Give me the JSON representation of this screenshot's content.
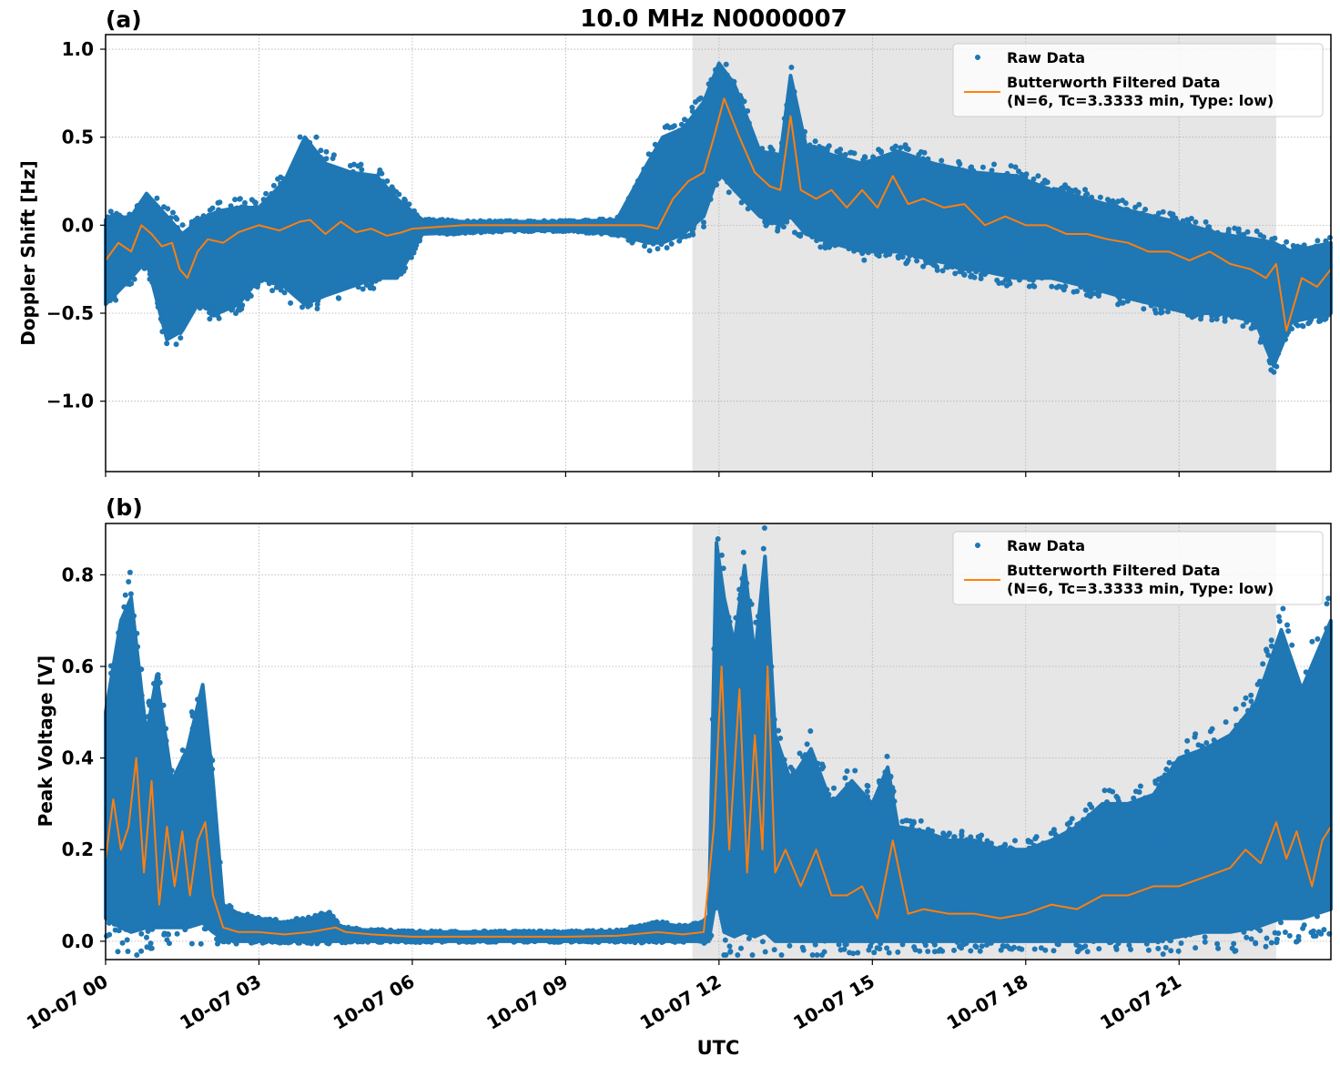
{
  "figure_title": "10.0 MHz N0000007",
  "xlabel": "UTC",
  "colors": {
    "raw": "#1f77b4",
    "filtered": "#ff7f0e",
    "shade": "#e6e6e6",
    "grid": "#b0b0b0"
  },
  "chart_data": [
    {
      "type": "scatter",
      "panel_label": "(a)",
      "title": "10.0 MHz N0000007",
      "xlabel": "",
      "ylabel": "Doppler Shift [Hz]",
      "x_units": "hours since 10-07 00 UTC",
      "xlim": [
        0,
        23.97
      ],
      "ylim": [
        -1.4,
        1.083
      ],
      "grid": true,
      "legend_position": "top-right",
      "shaded_interval_hours": [
        11.48,
        22.9
      ],
      "xticks": [
        0,
        3,
        6,
        9,
        12,
        15,
        18,
        21
      ],
      "xtick_labels": [
        "10-07 00",
        "10-07 03",
        "10-07 06",
        "10-07 09",
        "10-07 12",
        "10-07 15",
        "10-07 18",
        "10-07 21"
      ],
      "yticks": [
        1.0,
        0.5,
        0.0,
        -0.5,
        -1.0
      ],
      "ytick_labels": [
        "1.0",
        "0.5",
        "0.0",
        "−0.5",
        "−1.0"
      ],
      "legend": [
        "Raw Data",
        "Butterworth Filtered Data",
        "(N=6, Tc=3.3333 min, Type: low)"
      ],
      "series": [
        {
          "name": "Raw Data (envelope)",
          "x": [
            0,
            0.5,
            0.8,
            1.2,
            1.5,
            1.8,
            2.2,
            2.6,
            3.0,
            3.5,
            3.9,
            4.3,
            4.8,
            5.3,
            5.7,
            6.2,
            7,
            8,
            9,
            10,
            10.6,
            10.9,
            11.3,
            11.7,
            12.0,
            12.3,
            12.8,
            13.2,
            13.4,
            13.7,
            14.2,
            14.8,
            15.5,
            16.2,
            17,
            17.8,
            18.5,
            19.2,
            19.8,
            20.5,
            21.2,
            21.8,
            22.5,
            22.85,
            23.2,
            23.97
          ],
          "upper": [
            0.03,
            0.05,
            0.18,
            0.05,
            -0.05,
            0.02,
            0.08,
            0.1,
            0.1,
            0.25,
            0.5,
            0.35,
            0.3,
            0.28,
            0.15,
            0.03,
            0.02,
            0.02,
            0.02,
            0.03,
            0.35,
            0.5,
            0.55,
            0.7,
            0.92,
            0.8,
            0.42,
            0.4,
            0.85,
            0.45,
            0.4,
            0.35,
            0.42,
            0.35,
            0.3,
            0.28,
            0.2,
            0.15,
            0.1,
            0.05,
            0.0,
            -0.05,
            -0.08,
            -0.1,
            -0.15,
            -0.1
          ],
          "lower": [
            -0.45,
            -0.3,
            -0.2,
            -0.65,
            -0.6,
            -0.45,
            -0.5,
            -0.45,
            -0.3,
            -0.35,
            -0.45,
            -0.4,
            -0.35,
            -0.3,
            -0.3,
            -0.05,
            -0.04,
            -0.03,
            -0.03,
            -0.05,
            -0.1,
            -0.1,
            -0.05,
            0.05,
            0.3,
            0.2,
            0.05,
            0.0,
            0.05,
            -0.05,
            -0.1,
            -0.15,
            -0.15,
            -0.2,
            -0.25,
            -0.3,
            -0.3,
            -0.35,
            -0.4,
            -0.45,
            -0.5,
            -0.5,
            -0.55,
            -0.8,
            -0.55,
            -0.5
          ]
        },
        {
          "name": "Butterworth Filtered Data",
          "x": [
            0,
            0.25,
            0.5,
            0.7,
            0.9,
            1.1,
            1.3,
            1.45,
            1.6,
            1.8,
            2.0,
            2.3,
            2.6,
            3.0,
            3.4,
            3.8,
            4.0,
            4.3,
            4.6,
            4.9,
            5.2,
            5.5,
            5.8,
            6.0,
            6.5,
            7,
            8,
            9,
            10,
            10.5,
            10.8,
            11.1,
            11.4,
            11.7,
            11.9,
            12.1,
            12.4,
            12.7,
            13.0,
            13.2,
            13.4,
            13.6,
            13.9,
            14.2,
            14.5,
            14.8,
            15.1,
            15.4,
            15.7,
            16.0,
            16.4,
            16.8,
            17.2,
            17.6,
            18.0,
            18.4,
            18.8,
            19.2,
            19.6,
            20.0,
            20.4,
            20.8,
            21.2,
            21.6,
            22.0,
            22.4,
            22.7,
            22.9,
            23.1,
            23.4,
            23.7,
            23.97
          ],
          "y": [
            -0.2,
            -0.1,
            -0.15,
            0.0,
            -0.05,
            -0.12,
            -0.1,
            -0.25,
            -0.3,
            -0.15,
            -0.08,
            -0.1,
            -0.04,
            0.0,
            -0.03,
            0.02,
            0.03,
            -0.05,
            0.02,
            -0.04,
            -0.02,
            -0.06,
            -0.04,
            -0.02,
            -0.01,
            0.0,
            0.0,
            0.0,
            0.0,
            0.0,
            -0.02,
            0.15,
            0.25,
            0.3,
            0.5,
            0.72,
            0.5,
            0.3,
            0.22,
            0.2,
            0.62,
            0.2,
            0.15,
            0.2,
            0.1,
            0.2,
            0.1,
            0.28,
            0.12,
            0.15,
            0.1,
            0.12,
            0.0,
            0.05,
            0.0,
            0.0,
            -0.05,
            -0.05,
            -0.08,
            -0.1,
            -0.15,
            -0.15,
            -0.2,
            -0.15,
            -0.22,
            -0.25,
            -0.3,
            -0.22,
            -0.6,
            -0.3,
            -0.35,
            -0.25
          ]
        }
      ]
    },
    {
      "type": "scatter",
      "panel_label": "(b)",
      "title": "",
      "xlabel": "UTC",
      "ylabel": "Peak Voltage [V]",
      "x_units": "hours since 10-07 00 UTC",
      "xlim": [
        0,
        23.97
      ],
      "ylim": [
        -0.04,
        0.912
      ],
      "grid": true,
      "legend_position": "top-right",
      "shaded_interval_hours": [
        11.48,
        22.9
      ],
      "xticks": [
        0,
        3,
        6,
        9,
        12,
        15,
        18,
        21
      ],
      "xtick_labels": [
        "10-07 00",
        "10-07 03",
        "10-07 06",
        "10-07 09",
        "10-07 12",
        "10-07 15",
        "10-07 18",
        "10-07 21"
      ],
      "yticks": [
        0.0,
        0.2,
        0.4,
        0.6,
        0.8
      ],
      "ytick_labels": [
        "0.0",
        "0.2",
        "0.4",
        "0.6",
        "0.8"
      ],
      "legend": [
        "Raw Data",
        "Butterworth Filtered Data",
        "(N=6, Tc=3.3333 min, Type: low)"
      ],
      "series": [
        {
          "name": "Raw Data (envelope)",
          "x": [
            0,
            0.3,
            0.5,
            0.8,
            1.0,
            1.3,
            1.6,
            1.9,
            2.1,
            2.3,
            2.6,
            3.0,
            3.5,
            4.0,
            4.4,
            4.6,
            5.0,
            6,
            7,
            8,
            9,
            10,
            10.8,
            11.4,
            11.8,
            11.95,
            12.1,
            12.3,
            12.5,
            12.7,
            12.9,
            13.1,
            13.4,
            13.8,
            14.2,
            14.6,
            15.0,
            15.3,
            15.5,
            16.0,
            16.5,
            17.0,
            17.5,
            18.0,
            18.5,
            19.0,
            19.5,
            20.0,
            20.5,
            21.0,
            21.5,
            22.0,
            22.5,
            23.0,
            23.4,
            23.97
          ],
          "upper": [
            0.5,
            0.7,
            0.75,
            0.45,
            0.58,
            0.35,
            0.42,
            0.56,
            0.35,
            0.08,
            0.06,
            0.05,
            0.04,
            0.05,
            0.06,
            0.03,
            0.025,
            0.02,
            0.02,
            0.02,
            0.02,
            0.022,
            0.04,
            0.03,
            0.05,
            0.87,
            0.75,
            0.65,
            0.82,
            0.62,
            0.84,
            0.45,
            0.35,
            0.42,
            0.3,
            0.35,
            0.3,
            0.38,
            0.25,
            0.24,
            0.22,
            0.22,
            0.2,
            0.2,
            0.22,
            0.25,
            0.3,
            0.3,
            0.32,
            0.4,
            0.42,
            0.45,
            0.52,
            0.68,
            0.55,
            0.7
          ],
          "lower": [
            0.05,
            0.03,
            0.02,
            0.03,
            0.03,
            0.03,
            0.03,
            0.04,
            0.02,
            0.005,
            0.0,
            0.0,
            0.0,
            0.0,
            0.0,
            0.0,
            0.0,
            0.0,
            0.0,
            0.0,
            0.0,
            0.0,
            0.0,
            0.0,
            0.0,
            0.1,
            0.02,
            0.01,
            0.02,
            0.01,
            0.02,
            0.0,
            0.0,
            0.0,
            0.0,
            0.0,
            0.0,
            0.0,
            0.0,
            0.0,
            0.0,
            0.0,
            0.0,
            0.0,
            0.0,
            0.0,
            0.0,
            0.0,
            0.0,
            0.01,
            0.02,
            0.02,
            0.03,
            0.05,
            0.05,
            0.07
          ]
        },
        {
          "name": "Butterworth Filtered Data",
          "x": [
            0,
            0.15,
            0.3,
            0.45,
            0.6,
            0.75,
            0.9,
            1.05,
            1.2,
            1.35,
            1.5,
            1.65,
            1.8,
            1.95,
            2.1,
            2.3,
            2.6,
            3.0,
            3.5,
            4.0,
            4.5,
            4.7,
            5.2,
            6,
            7,
            8,
            9,
            10,
            10.8,
            11.3,
            11.7,
            11.9,
            12.05,
            12.2,
            12.4,
            12.55,
            12.7,
            12.85,
            12.95,
            13.1,
            13.3,
            13.6,
            13.9,
            14.2,
            14.5,
            14.8,
            15.1,
            15.4,
            15.7,
            16.0,
            16.5,
            17.0,
            17.5,
            18.0,
            18.5,
            19.0,
            19.5,
            20.0,
            20.5,
            21.0,
            21.5,
            22.0,
            22.3,
            22.6,
            22.9,
            23.1,
            23.3,
            23.6,
            23.8,
            23.97
          ],
          "y": [
            0.18,
            0.31,
            0.2,
            0.25,
            0.4,
            0.15,
            0.35,
            0.08,
            0.25,
            0.12,
            0.24,
            0.1,
            0.22,
            0.26,
            0.1,
            0.03,
            0.02,
            0.02,
            0.015,
            0.02,
            0.03,
            0.02,
            0.015,
            0.01,
            0.01,
            0.01,
            0.01,
            0.012,
            0.02,
            0.015,
            0.02,
            0.25,
            0.6,
            0.2,
            0.55,
            0.15,
            0.45,
            0.2,
            0.6,
            0.15,
            0.2,
            0.12,
            0.2,
            0.1,
            0.1,
            0.12,
            0.05,
            0.22,
            0.06,
            0.07,
            0.06,
            0.06,
            0.05,
            0.06,
            0.08,
            0.07,
            0.1,
            0.1,
            0.12,
            0.12,
            0.14,
            0.16,
            0.2,
            0.17,
            0.26,
            0.18,
            0.24,
            0.12,
            0.22,
            0.25
          ]
        }
      ]
    }
  ]
}
